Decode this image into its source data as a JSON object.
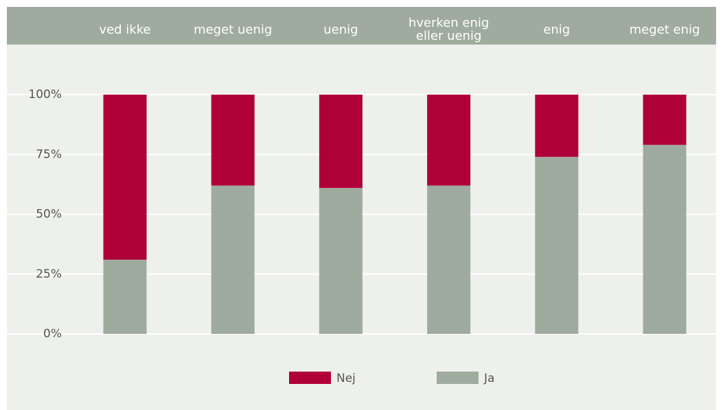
{
  "chart_data": {
    "type": "stacked_bar",
    "categories": [
      "ved ikke",
      "meget uenig",
      "uenig",
      "hverken enig eller uenig",
      "enig",
      "meget enig"
    ],
    "series": [
      {
        "name": "Nej",
        "color": "#b0003a",
        "values": [
          69,
          38,
          39,
          38,
          26,
          21
        ]
      },
      {
        "name": "Ja",
        "color": "#9fab9e",
        "values": [
          31,
          62,
          61,
          62,
          74,
          79
        ]
      }
    ],
    "ylim": [
      0,
      100
    ],
    "yticks": [
      {
        "value": 0,
        "label": "0%"
      },
      {
        "value": 25,
        "label": "25%"
      },
      {
        "value": 50,
        "label": "50%"
      },
      {
        "value": 75,
        "label": "75%"
      },
      {
        "value": 100,
        "label": "100%"
      }
    ],
    "grid": true
  }
}
